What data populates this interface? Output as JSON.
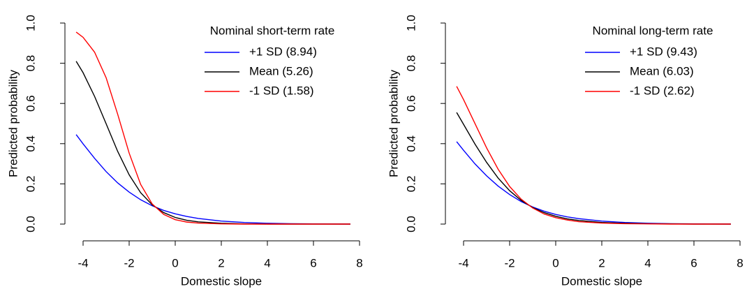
{
  "chart_data": [
    {
      "type": "line",
      "legend_title": "Nominal short-term rate",
      "xlabel": "Domestic slope",
      "ylabel": "Predicted probability",
      "x": [
        -4.3,
        -4,
        -3.5,
        -3,
        -2.5,
        -2,
        -1.5,
        -1,
        -0.5,
        0,
        0.5,
        1,
        2,
        3,
        4,
        5,
        6,
        7.6
      ],
      "series": [
        {
          "name": "+1 SD (8.94)",
          "color": "#0000ff",
          "values": [
            0.445,
            0.399,
            0.327,
            0.261,
            0.205,
            0.159,
            0.121,
            0.091,
            0.068,
            0.051,
            0.038,
            0.028,
            0.015,
            0.008,
            0.004,
            0.002,
            0.001,
            0
          ]
        },
        {
          "name": "Mean (5.26)",
          "color": "#000000",
          "values": [
            0.81,
            0.753,
            0.635,
            0.499,
            0.362,
            0.245,
            0.156,
            0.096,
            0.057,
            0.033,
            0.019,
            0.011,
            0.004,
            0.001,
            0,
            0,
            0,
            0
          ]
        },
        {
          "name": "-1 SD (1.58)",
          "color": "#ff0000",
          "values": [
            0.955,
            0.929,
            0.855,
            0.728,
            0.547,
            0.353,
            0.197,
            0.1,
            0.048,
            0.022,
            0.01,
            0.005,
            0.001,
            0,
            0,
            0,
            0,
            0
          ]
        }
      ],
      "xlim": [
        -4,
        8
      ],
      "xticks": [
        -4,
        -2,
        0,
        2,
        4,
        6,
        8
      ],
      "ylim": [
        0,
        1
      ],
      "yticks": [
        {
          "value": 0,
          "label": "0.0"
        },
        0.2,
        0.4,
        0.6,
        0.8,
        {
          "value": 1,
          "label": "1.0"
        }
      ],
      "grid": false,
      "legend": "top-right"
    },
    {
      "type": "line",
      "legend_title": "Nominal long-term rate",
      "xlabel": "Domestic slope",
      "ylabel": "Predicted probability",
      "x": [
        -4.3,
        -4,
        -3.5,
        -3,
        -2.5,
        -2,
        -1.5,
        -1,
        -0.5,
        0,
        0.5,
        1,
        2,
        3,
        4,
        5,
        6,
        7.6
      ],
      "series": [
        {
          "name": "+1 SD (9.43)",
          "color": "#0000ff",
          "values": [
            0.41,
            0.367,
            0.299,
            0.24,
            0.189,
            0.147,
            0.112,
            0.085,
            0.064,
            0.048,
            0.036,
            0.027,
            0.015,
            0.008,
            0.004,
            0.002,
            0.001,
            0
          ]
        },
        {
          "name": "Mean (6.03)",
          "color": "#000000",
          "values": [
            0.555,
            0.496,
            0.397,
            0.307,
            0.229,
            0.166,
            0.118,
            0.082,
            0.057,
            0.039,
            0.026,
            0.018,
            0.008,
            0.004,
            0.002,
            0.001,
            0,
            0
          ]
        },
        {
          "name": "-1 SD (2.62)",
          "color": "#ff0000",
          "values": [
            0.685,
            0.619,
            0.499,
            0.379,
            0.273,
            0.187,
            0.124,
            0.08,
            0.05,
            0.032,
            0.02,
            0.012,
            0.005,
            0.002,
            0.001,
            0,
            0,
            0
          ]
        }
      ],
      "xlim": [
        -4,
        8
      ],
      "xticks": [
        -4,
        -2,
        0,
        2,
        4,
        6,
        8
      ],
      "ylim": [
        0,
        1
      ],
      "yticks": [
        {
          "value": 0,
          "label": "0.0"
        },
        0.2,
        0.4,
        0.6,
        0.8,
        {
          "value": 1,
          "label": "1.0"
        }
      ],
      "grid": false,
      "legend": "top-right"
    }
  ]
}
